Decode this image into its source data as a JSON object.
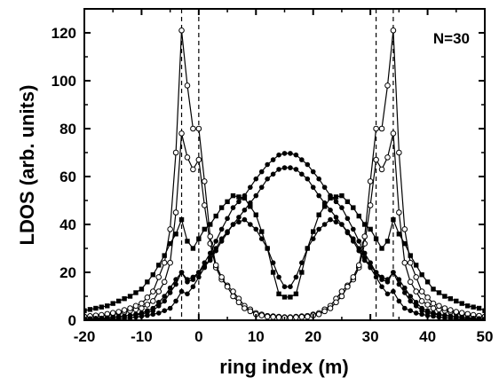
{
  "chart_data": {
    "type": "line",
    "xlabel": "ring index (m)",
    "ylabel": "LDOS (arb. units)",
    "annotation": "N=30",
    "xlim": [
      -20,
      50
    ],
    "ylim": [
      0,
      130
    ],
    "xticks": [
      -20,
      -10,
      0,
      10,
      20,
      30,
      40,
      50
    ],
    "yticks": [
      0,
      20,
      40,
      60,
      80,
      100,
      120
    ],
    "grid": false,
    "vlines": [
      -3,
      0,
      31,
      34
    ],
    "series": [
      {
        "marker": "open-circle",
        "points": [
          [
            -20,
            1.5
          ],
          [
            -17,
            2
          ],
          [
            -14,
            3
          ],
          [
            -12,
            4
          ],
          [
            -10,
            5
          ],
          [
            -8,
            8
          ],
          [
            -6,
            16
          ],
          [
            -5,
            24
          ],
          [
            -4,
            45
          ],
          [
            -3,
            78
          ],
          [
            -2,
            68
          ],
          [
            -1,
            63
          ],
          [
            0,
            67
          ],
          [
            1,
            48
          ],
          [
            2,
            32
          ],
          [
            3,
            22
          ],
          [
            4,
            17
          ],
          [
            6,
            12
          ],
          [
            8,
            6
          ],
          [
            10,
            3
          ],
          [
            12,
            1.8
          ],
          [
            15.5,
            1.2
          ],
          [
            19,
            1.8
          ],
          [
            21,
            3
          ],
          [
            23,
            6
          ],
          [
            25,
            12
          ],
          [
            27,
            17
          ],
          [
            28,
            22
          ],
          [
            29,
            32
          ],
          [
            30,
            48
          ],
          [
            31,
            67
          ],
          [
            32,
            63
          ],
          [
            33,
            68
          ],
          [
            34,
            78
          ],
          [
            35,
            45
          ],
          [
            36,
            24
          ],
          [
            37,
            16
          ],
          [
            39,
            8
          ],
          [
            41,
            5
          ],
          [
            43,
            4
          ],
          [
            45,
            3
          ],
          [
            48,
            2
          ],
          [
            50,
            1.5
          ]
        ]
      },
      {
        "marker": "open-circle",
        "points": [
          [
            -20,
            1.5
          ],
          [
            -17,
            2.2
          ],
          [
            -14,
            3.5
          ],
          [
            -12,
            5
          ],
          [
            -10,
            7
          ],
          [
            -8,
            12
          ],
          [
            -6,
            24
          ],
          [
            -5,
            38
          ],
          [
            -4,
            70
          ],
          [
            -3,
            121
          ],
          [
            -2,
            98
          ],
          [
            -1,
            80
          ],
          [
            0,
            80
          ],
          [
            1,
            58
          ],
          [
            2,
            35
          ],
          [
            3,
            23
          ],
          [
            4,
            18
          ],
          [
            6,
            10
          ],
          [
            8,
            5
          ],
          [
            10,
            2.5
          ],
          [
            12,
            1.5
          ],
          [
            15.5,
            1
          ],
          [
            19,
            1.5
          ],
          [
            21,
            2.5
          ],
          [
            23,
            5
          ],
          [
            25,
            10
          ],
          [
            27,
            18
          ],
          [
            28,
            23
          ],
          [
            29,
            35
          ],
          [
            30,
            58
          ],
          [
            31,
            80
          ],
          [
            32,
            80
          ],
          [
            33,
            98
          ],
          [
            34,
            121
          ],
          [
            35,
            70
          ],
          [
            36,
            38
          ],
          [
            37,
            24
          ],
          [
            39,
            12
          ],
          [
            41,
            7
          ],
          [
            43,
            5
          ],
          [
            45,
            3.5
          ],
          [
            48,
            2.2
          ],
          [
            50,
            1.5
          ]
        ]
      },
      {
        "marker": "filled-square",
        "points": [
          [
            -20,
            4
          ],
          [
            -18,
            5
          ],
          [
            -16,
            6
          ],
          [
            -14,
            8
          ],
          [
            -12,
            10
          ],
          [
            -10,
            13
          ],
          [
            -8,
            19
          ],
          [
            -6,
            27
          ],
          [
            -5,
            32
          ],
          [
            -4,
            36
          ],
          [
            -3,
            42
          ],
          [
            -2,
            33
          ],
          [
            -1,
            30
          ],
          [
            0,
            34
          ],
          [
            1,
            38
          ],
          [
            2,
            40
          ],
          [
            4,
            47
          ],
          [
            6,
            52
          ],
          [
            8,
            51
          ],
          [
            10,
            44
          ],
          [
            12,
            30
          ],
          [
            13,
            20
          ],
          [
            14,
            11
          ],
          [
            15.5,
            9
          ],
          [
            17,
            11
          ],
          [
            18,
            20
          ],
          [
            19,
            30
          ],
          [
            21,
            44
          ],
          [
            23,
            51
          ],
          [
            25,
            52
          ],
          [
            27,
            47
          ],
          [
            29,
            40
          ],
          [
            30,
            38
          ],
          [
            31,
            34
          ],
          [
            32,
            30
          ],
          [
            33,
            33
          ],
          [
            34,
            42
          ],
          [
            35,
            36
          ],
          [
            36,
            32
          ],
          [
            37,
            27
          ],
          [
            39,
            19
          ],
          [
            41,
            13
          ],
          [
            43,
            10
          ],
          [
            45,
            8
          ],
          [
            47,
            6
          ],
          [
            49,
            5
          ],
          [
            50,
            4
          ]
        ]
      },
      {
        "marker": "filled-circle",
        "points": [
          [
            -20,
            0.5
          ],
          [
            -16,
            1
          ],
          [
            -12,
            2
          ],
          [
            -10,
            3
          ],
          [
            -8,
            5
          ],
          [
            -6,
            10
          ],
          [
            -4,
            17
          ],
          [
            -3,
            20
          ],
          [
            -2,
            17
          ],
          [
            -1,
            18
          ],
          [
            0,
            20
          ],
          [
            2,
            25
          ],
          [
            4,
            33
          ],
          [
            6,
            40
          ],
          [
            8,
            46
          ],
          [
            10,
            52
          ],
          [
            12,
            59
          ],
          [
            14,
            63
          ],
          [
            15.5,
            64
          ],
          [
            17,
            63
          ],
          [
            19,
            59
          ],
          [
            21,
            52
          ],
          [
            23,
            46
          ],
          [
            25,
            40
          ],
          [
            27,
            33
          ],
          [
            29,
            25
          ],
          [
            31,
            20
          ],
          [
            32,
            18
          ],
          [
            33,
            17
          ],
          [
            34,
            20
          ],
          [
            35,
            17
          ],
          [
            37,
            10
          ],
          [
            39,
            5
          ],
          [
            41,
            3
          ],
          [
            43,
            2
          ],
          [
            47,
            1
          ],
          [
            50,
            0.5
          ]
        ]
      },
      {
        "marker": "filled-circle",
        "points": [
          [
            -20,
            0.5
          ],
          [
            -16,
            1
          ],
          [
            -12,
            2
          ],
          [
            -10,
            2.5
          ],
          [
            -8,
            4
          ],
          [
            -6,
            8
          ],
          [
            -4,
            15
          ],
          [
            -3,
            20
          ],
          [
            -2,
            16
          ],
          [
            -1,
            17
          ],
          [
            0,
            20
          ],
          [
            2,
            28
          ],
          [
            4,
            38
          ],
          [
            6,
            47
          ],
          [
            8,
            52
          ],
          [
            10,
            59
          ],
          [
            12,
            65
          ],
          [
            14,
            69
          ],
          [
            15.5,
            70
          ],
          [
            17,
            69
          ],
          [
            19,
            65
          ],
          [
            21,
            59
          ],
          [
            23,
            52
          ],
          [
            25,
            47
          ],
          [
            27,
            38
          ],
          [
            29,
            28
          ],
          [
            31,
            20
          ],
          [
            32,
            17
          ],
          [
            33,
            16
          ],
          [
            34,
            20
          ],
          [
            35,
            15
          ],
          [
            37,
            8
          ],
          [
            39,
            4
          ],
          [
            41,
            2.5
          ],
          [
            43,
            2
          ],
          [
            47,
            1
          ],
          [
            50,
            0.5
          ]
        ]
      },
      {
        "marker": "filled-circle",
        "points": [
          [
            -20,
            0.3
          ],
          [
            -15,
            0.6
          ],
          [
            -12,
            1
          ],
          [
            -9,
            2
          ],
          [
            -7,
            3
          ],
          [
            -5,
            5
          ],
          [
            -4,
            8
          ],
          [
            -3,
            12
          ],
          [
            -2,
            11
          ],
          [
            -1,
            14
          ],
          [
            0,
            18
          ],
          [
            2,
            26
          ],
          [
            4,
            34
          ],
          [
            6,
            40
          ],
          [
            8,
            42
          ],
          [
            10,
            38
          ],
          [
            12,
            30
          ],
          [
            14,
            18
          ],
          [
            15.5,
            12
          ],
          [
            17,
            18
          ],
          [
            19,
            30
          ],
          [
            21,
            38
          ],
          [
            23,
            42
          ],
          [
            25,
            40
          ],
          [
            27,
            34
          ],
          [
            29,
            26
          ],
          [
            31,
            18
          ],
          [
            32,
            14
          ],
          [
            33,
            11
          ],
          [
            34,
            12
          ],
          [
            35,
            8
          ],
          [
            36,
            5
          ],
          [
            38,
            3
          ],
          [
            40,
            2
          ],
          [
            43,
            1
          ],
          [
            46,
            0.6
          ],
          [
            50,
            0.3
          ]
        ]
      }
    ]
  }
}
